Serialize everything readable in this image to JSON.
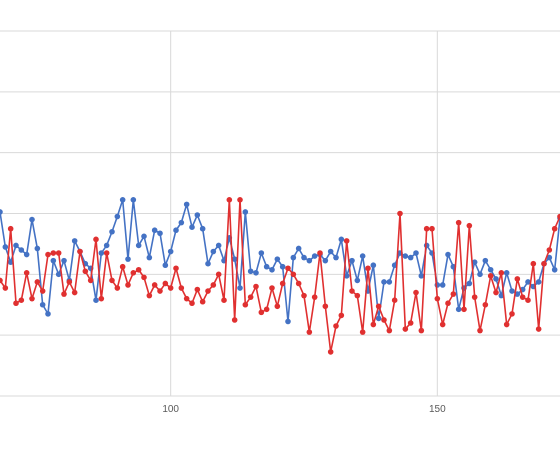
{
  "chart_data": {
    "type": "line",
    "grid": true,
    "xlim": [
      68,
      173
    ],
    "ylim": [
      -2,
      10
    ],
    "x_ticks": [
      100,
      150
    ],
    "x_tick_labels": [
      "100",
      "150"
    ],
    "series": [
      {
        "color": "#4472C4",
        "start_x": 68,
        "values": [
          4.05,
          2.9,
          2.4,
          2.95,
          2.8,
          2.65,
          3.8,
          2.85,
          1.0,
          0.7,
          2.45,
          2.0,
          2.45,
          1.8,
          3.1,
          2.75,
          2.35,
          2.2,
          1.15,
          2.7,
          2.95,
          3.4,
          3.9,
          4.45,
          2.5,
          4.45,
          2.95,
          3.25,
          2.55,
          3.45,
          3.35,
          2.3,
          2.75,
          3.45,
          3.7,
          4.3,
          3.55,
          3.95,
          3.5,
          2.35,
          2.75,
          2.95,
          2.45,
          3.2,
          2.5,
          1.55,
          4.05,
          2.1,
          2.05,
          2.7,
          2.25,
          2.15,
          2.5,
          2.25,
          0.45,
          2.55,
          2.85,
          2.55,
          2.45,
          2.6,
          2.65,
          2.45,
          2.75,
          2.55,
          3.15,
          1.95,
          2.45,
          1.8,
          2.6,
          1.45,
          2.3,
          0.55,
          1.75,
          1.75,
          2.3,
          2.7,
          2.6,
          2.55,
          2.7,
          1.95,
          2.95,
          2.7,
          1.65,
          1.65,
          2.65,
          2.25,
          0.85,
          1.55,
          1.7,
          2.4,
          2.0,
          2.45,
          2.15,
          1.85,
          1.3,
          2.05,
          1.45,
          1.35,
          1.5,
          1.75,
          1.6,
          1.75,
          2.35,
          2.55,
          2.15,
          3.85
        ]
      },
      {
        "color": "#E03030",
        "start_x": 68,
        "values": [
          1.8,
          1.55,
          3.5,
          1.05,
          1.15,
          2.05,
          1.2,
          1.75,
          1.45,
          2.65,
          2.7,
          2.7,
          1.35,
          1.75,
          1.4,
          2.75,
          2.1,
          1.8,
          3.15,
          1.2,
          2.7,
          1.8,
          1.55,
          2.25,
          1.65,
          2.05,
          2.15,
          1.9,
          1.3,
          1.65,
          1.45,
          1.7,
          1.55,
          2.2,
          1.55,
          1.2,
          1.05,
          1.5,
          1.1,
          1.45,
          1.65,
          2.0,
          1.15,
          4.45,
          0.5,
          4.45,
          1.0,
          1.25,
          1.6,
          0.75,
          0.85,
          1.55,
          0.95,
          1.7,
          2.2,
          2.0,
          1.7,
          1.3,
          0.1,
          1.25,
          2.7,
          0.95,
          -0.55,
          0.3,
          0.65,
          3.1,
          1.45,
          1.3,
          0.1,
          2.2,
          0.35,
          0.95,
          0.5,
          0.15,
          1.15,
          4.0,
          0.2,
          0.4,
          1.4,
          0.15,
          3.5,
          3.5,
          1.2,
          0.35,
          1.05,
          1.35,
          3.7,
          0.85,
          3.6,
          1.25,
          0.15,
          1.0,
          1.95,
          1.4,
          2.05,
          0.35,
          0.7,
          1.85,
          1.25,
          1.15,
          2.35,
          0.2,
          2.35,
          2.8,
          3.5,
          3.9
        ]
      }
    ]
  }
}
